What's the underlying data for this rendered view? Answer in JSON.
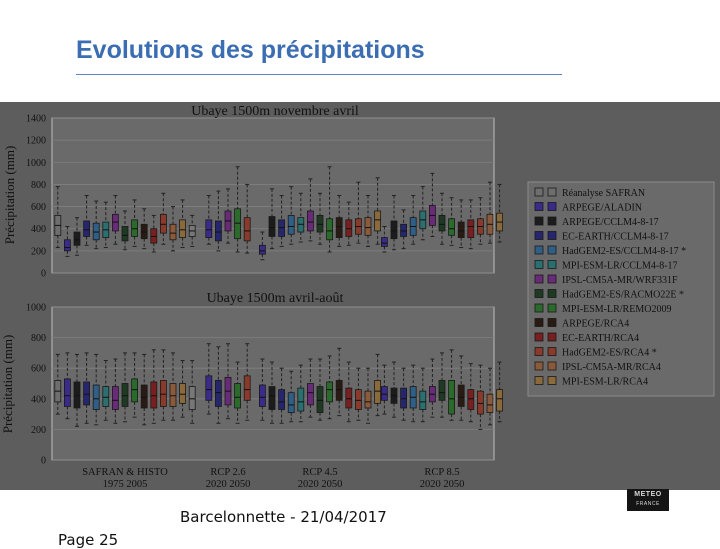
{
  "slide": {
    "title": "Evolutions des précipitations",
    "footer": "Barcelonnette - 21/04/2017",
    "page_number": "Page 25",
    "logo": {
      "line1": "METEO",
      "line2": "FRANCE"
    }
  },
  "colors": {
    "slide_title": "#3b6db2",
    "figure_background": "#5d5d5d",
    "plot_background": "#6a6a6a",
    "grid": "#808080"
  },
  "chart_data": [
    {
      "type": "boxplot",
      "title": "Ubaye 1500m novembre avril",
      "ylabel": "Précipitation (mm)",
      "ylim": [
        0,
        1400
      ],
      "yticks": [
        "0",
        "200",
        "400",
        "600",
        "800",
        "1000",
        "1200",
        "1400"
      ],
      "grid": true,
      "groups": [
        {
          "name": "SAFRAN & HISTO",
          "boxes": [
            [
              230,
              340,
              430,
              520,
              780
            ],
            [
              150,
              200,
              230,
              300,
              420
            ],
            [
              160,
              250,
              300,
              370,
              500
            ],
            [
              250,
              330,
              390,
              470,
              700
            ],
            [
              220,
              300,
              370,
              450,
              650
            ],
            [
              230,
              320,
              390,
              460,
              640
            ],
            [
              260,
              380,
              460,
              530,
              700
            ],
            [
              210,
              290,
              340,
              420,
              560
            ],
            [
              240,
              330,
              400,
              480,
              660
            ],
            [
              220,
              310,
              370,
              440,
              580
            ],
            [
              190,
              270,
              330,
              400,
              520
            ],
            [
              260,
              360,
              440,
              530,
              720
            ],
            [
              200,
              300,
              360,
              440,
              600
            ],
            [
              230,
              320,
              390,
              480,
              660
            ],
            [
              240,
              330,
              380,
              430,
              520
            ]
          ]
        },
        {
          "name": "RCP 2.6",
          "boxes": [
            [
              260,
              320,
              390,
              480,
              700
            ],
            [
              200,
              290,
              370,
              470,
              740
            ],
            [
              270,
              380,
              470,
              560,
              760
            ],
            [
              190,
              310,
              450,
              580,
              960
            ],
            [
              180,
              290,
              380,
              500,
              800
            ]
          ]
        },
        {
          "name": "RCP 4.5",
          "boxes": [
            [
              120,
              170,
              200,
              250,
              370
            ],
            [
              220,
              330,
              410,
              510,
              760
            ],
            [
              240,
              330,
              410,
              480,
              700
            ],
            [
              260,
              350,
              420,
              520,
              780
            ],
            [
              280,
              370,
              440,
              500,
              720
            ],
            [
              290,
              380,
              460,
              560,
              850
            ],
            [
              260,
              370,
              440,
              520,
              720
            ],
            [
              190,
              300,
              380,
              490,
              960
            ],
            [
              240,
              320,
              420,
              500,
              700
            ],
            [
              250,
              330,
              400,
              480,
              640
            ],
            [
              270,
              350,
              420,
              490,
              820
            ],
            [
              240,
              340,
              410,
              500,
              700
            ],
            [
              260,
              380,
              480,
              560,
              860
            ]
          ]
        },
        {
          "name": "RCP 8.5",
          "boxes": [
            [
              190,
              240,
              270,
              320,
              420
            ],
            [
              210,
              310,
              380,
              470,
              700
            ],
            [
              220,
              330,
              380,
              440,
              570
            ],
            [
              260,
              340,
              420,
              500,
              700
            ],
            [
              300,
              400,
              480,
              560,
              780
            ],
            [
              330,
              430,
              520,
              610,
              900
            ],
            [
              260,
              380,
              440,
              520,
              720
            ],
            [
              250,
              340,
              400,
              490,
              680
            ],
            [
              230,
              320,
              380,
              460,
              660
            ],
            [
              220,
              320,
              420,
              480,
              660
            ],
            [
              260,
              350,
              420,
              490,
              680
            ],
            [
              270,
              350,
              440,
              530,
              820
            ],
            [
              280,
              380,
              460,
              540,
              800
            ]
          ]
        }
      ]
    },
    {
      "type": "boxplot",
      "title": "Ubaye 1500m avril-août",
      "ylabel": "Précipitation (mm)",
      "ylim": [
        0,
        1000
      ],
      "yticks": [
        "0",
        "200",
        "400",
        "600",
        "800",
        "1000"
      ],
      "grid": true,
      "xticklabels": [
        [
          "SAFRAN & HISTO",
          "1975 2005"
        ],
        [
          "RCP 2.6",
          "2020 2050"
        ],
        [
          "RCP 4.5",
          "2020 2050"
        ],
        [
          "RCP 8.5",
          "2020 2050"
        ]
      ],
      "groups": [
        {
          "name": "SAFRAN & HISTO",
          "boxes": [
            [
              300,
              380,
              450,
              520,
              690
            ],
            [
              270,
              350,
              420,
              530,
              700
            ],
            [
              220,
              340,
              420,
              510,
              690
            ],
            [
              240,
              360,
              430,
              510,
              700
            ],
            [
              230,
              330,
              400,
              490,
              690
            ],
            [
              260,
              350,
              410,
              480,
              650
            ],
            [
              240,
              330,
              390,
              480,
              660
            ],
            [
              250,
              350,
              420,
              500,
              700
            ],
            [
              280,
              380,
              460,
              530,
              700
            ],
            [
              230,
              340,
              410,
              490,
              690
            ],
            [
              240,
              340,
              420,
              510,
              720
            ],
            [
              260,
              350,
              430,
              520,
              720
            ],
            [
              260,
              350,
              420,
              500,
              700
            ],
            [
              280,
              370,
              430,
              500,
              650
            ],
            [
              240,
              330,
              400,
              480,
              650
            ]
          ]
        },
        {
          "name": "RCP 2.6",
          "boxes": [
            [
              300,
              390,
              460,
              550,
              760
            ],
            [
              240,
              350,
              440,
              520,
              740
            ],
            [
              270,
              360,
              450,
              540,
              760
            ],
            [
              240,
              340,
              410,
              500,
              640
            ],
            [
              260,
              390,
              460,
              550,
              760
            ]
          ]
        },
        {
          "name": "RCP 4.5",
          "boxes": [
            [
              260,
              350,
              410,
              490,
              660
            ],
            [
              240,
              330,
              420,
              480,
              640
            ],
            [
              240,
              330,
              380,
              460,
              600
            ],
            [
              250,
              310,
              360,
              440,
              580
            ],
            [
              250,
              320,
              380,
              470,
              620
            ],
            [
              280,
              360,
              440,
              500,
              660
            ],
            [
              260,
              310,
              390,
              480,
              660
            ],
            [
              270,
              380,
              460,
              510,
              680
            ],
            [
              290,
              390,
              460,
              520,
              730
            ],
            [
              250,
              340,
              400,
              470,
              640
            ],
            [
              260,
              330,
              390,
              460,
              600
            ],
            [
              240,
              340,
              380,
              450,
              600
            ],
            [
              290,
              370,
              450,
              520,
              690
            ]
          ]
        },
        {
          "name": "RCP 8.5",
          "boxes": [
            [
              300,
              390,
              430,
              480,
              620
            ],
            [
              280,
              370,
              420,
              470,
              640
            ],
            [
              260,
              340,
              400,
              470,
              600
            ],
            [
              250,
              340,
              410,
              480,
              620
            ],
            [
              250,
              330,
              380,
              450,
              600
            ],
            [
              280,
              380,
              430,
              480,
              660
            ],
            [
              280,
              390,
              440,
              520,
              700
            ],
            [
              260,
              300,
              400,
              520,
              720
            ],
            [
              260,
              350,
              410,
              490,
              680
            ],
            [
              250,
              330,
              400,
              460,
              630
            ],
            [
              200,
              300,
              370,
              450,
              620
            ],
            [
              230,
              310,
              360,
              430,
              600
            ],
            [
              250,
              320,
              400,
              460,
              640
            ]
          ]
        }
      ]
    }
  ],
  "legend": {
    "placement": "right",
    "entries": [
      {
        "label": "Réanalyse SAFRAN",
        "color": "#6e6e6e"
      },
      {
        "label": "ARPEGE/ALADIN",
        "color": "#3a2a8a"
      },
      {
        "label": "ARPEGE/CCLM4-8-17",
        "color": "#1c1c1c"
      },
      {
        "label": "EC-EARTH/CCLM4-8-17",
        "color": "#26266e"
      },
      {
        "label": "HadGEM2-ES/CCLM4-8-17 *",
        "color": "#2f5f86"
      },
      {
        "label": "MPI-ESM-LR/CCLM4-8-17",
        "color": "#2a7070"
      },
      {
        "label": "IPSL-CM5A-MR/WRF331F",
        "color": "#6a2a7a"
      },
      {
        "label": "HadGEM2-ES/RACMO22E *",
        "color": "#1f3a22"
      },
      {
        "label": "MPI-ESM-LR/REMO2009",
        "color": "#2a6a2a"
      },
      {
        "label": "ARPEGE/RCA4",
        "color": "#2a1a14"
      },
      {
        "label": "EC-EARTH/RCA4",
        "color": "#7a1f1f"
      },
      {
        "label": "HadGEM2-ES/RCA4 *",
        "color": "#8a3a2a"
      },
      {
        "label": "IPSL-CM5A-MR/RCA4",
        "color": "#8a5a3a"
      },
      {
        "label": "MPI-ESM-LR/RCA4",
        "color": "#8a6a3a"
      }
    ]
  }
}
